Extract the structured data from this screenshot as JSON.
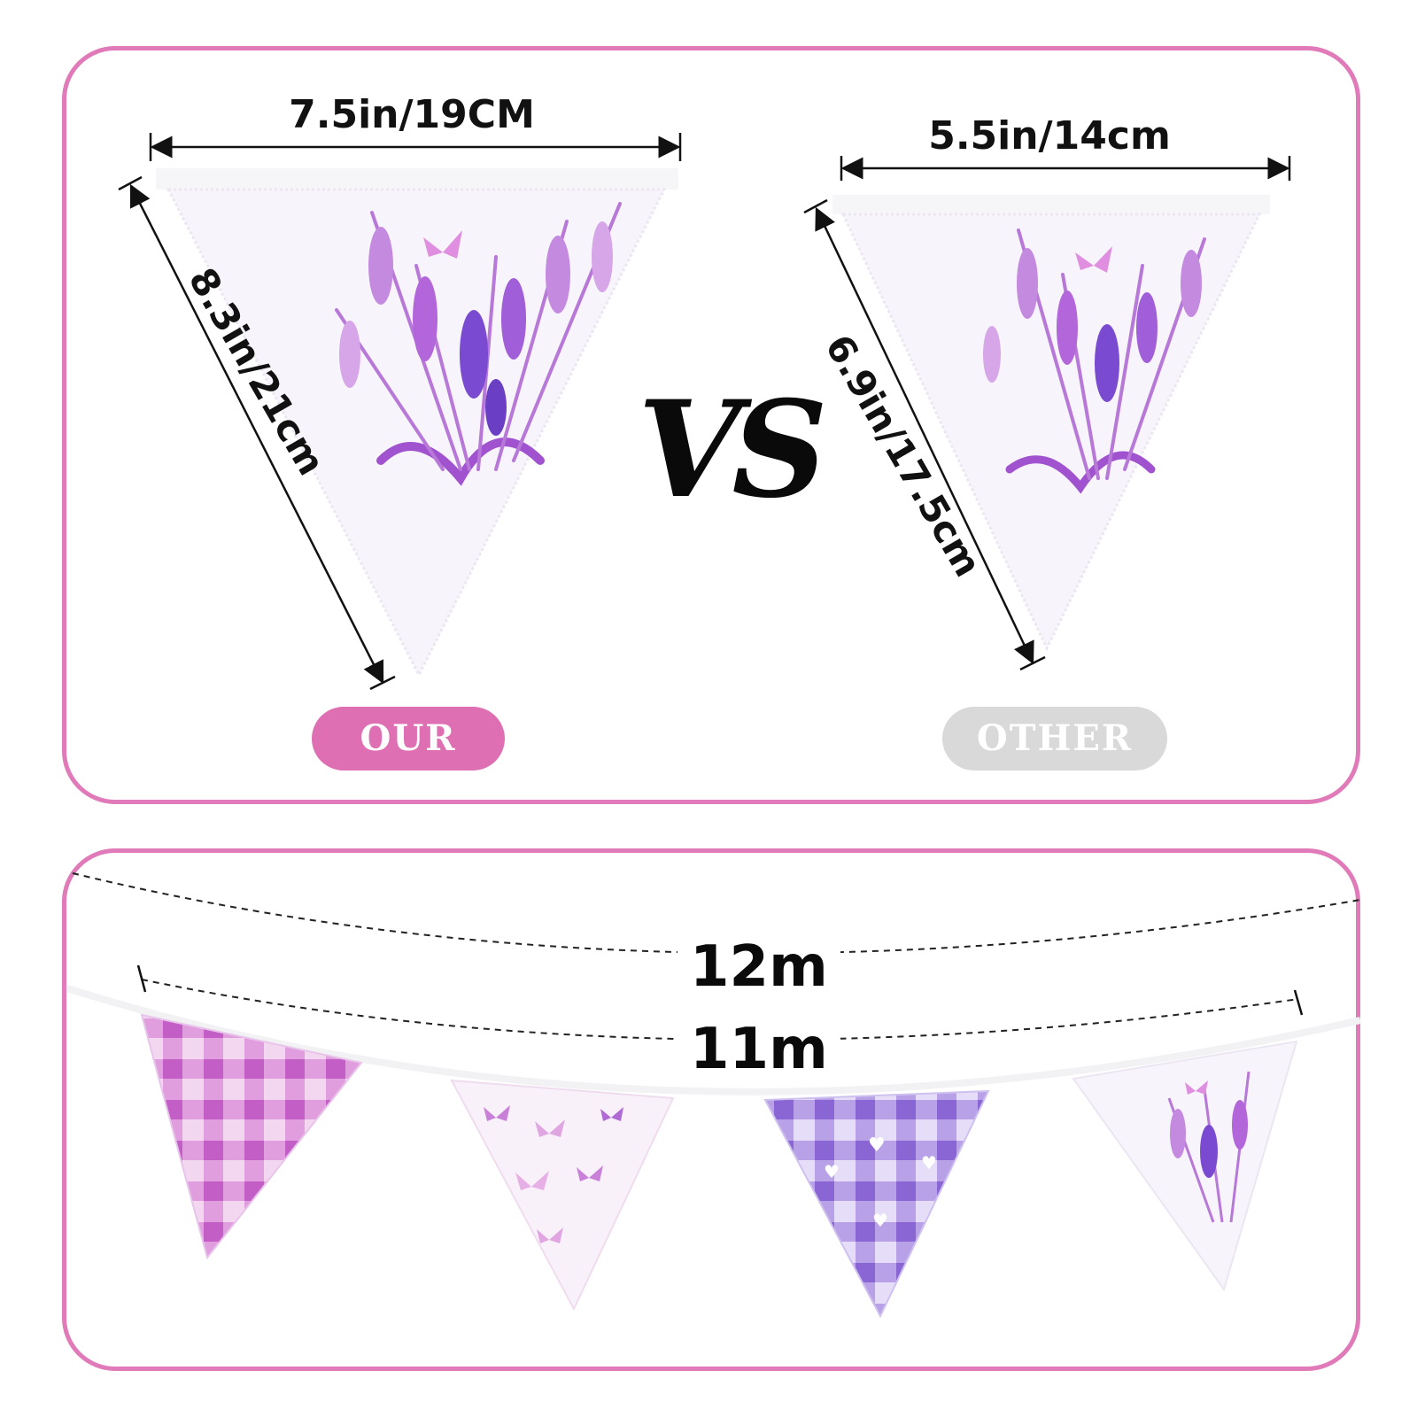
{
  "comparison": {
    "our": {
      "width_label": "7.5in/19CM",
      "side_label": "8.3in/21cm",
      "badge": "OUR"
    },
    "other": {
      "width_label": "5.5in/14cm",
      "side_label": "6.9in/17.5cm",
      "badge": "OTHER"
    },
    "vs_label": "VS"
  },
  "length": {
    "outer_label": "12m",
    "inner_label": "11m"
  },
  "colors": {
    "border": "#e07ab8",
    "our_badge": "#de6fb2",
    "other_badge": "#d9d9d9",
    "lavender": "#b05ed6",
    "violet": "#8a66d4",
    "pink": "#d26fd1"
  },
  "pennants": [
    {
      "pattern": "pink gingham"
    },
    {
      "pattern": "butterflies"
    },
    {
      "pattern": "purple gingham with hearts"
    },
    {
      "pattern": "lavender watercolor"
    }
  ]
}
